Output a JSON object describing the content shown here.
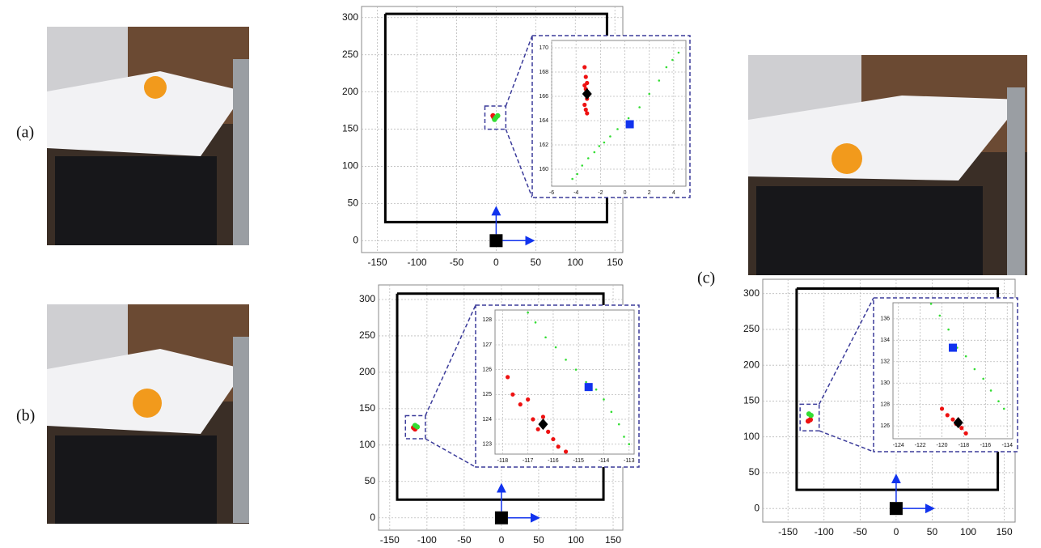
{
  "panel_labels": [
    "(a)",
    "(b)",
    "(c)"
  ],
  "chart_data": [
    {
      "type": "scatter",
      "grid": true,
      "xlim": [
        -170,
        160
      ],
      "ylim": [
        -16,
        315
      ],
      "xticks": [
        -150,
        -100,
        -50,
        0,
        50,
        100,
        150
      ],
      "yticks": [
        0,
        50,
        100,
        150,
        200,
        250,
        300
      ],
      "series": [
        {
          "marker": "line",
          "color": "#000000",
          "x": [
            -140,
            -140,
            140,
            140,
            -140
          ],
          "values": [
            305,
            25,
            25,
            305,
            305
          ]
        },
        {
          "marker": "circle",
          "color": "#ee1111",
          "x": [
            -4,
            -3,
            -2
          ],
          "values": [
            168,
            166,
            164
          ]
        },
        {
          "marker": "circle",
          "color": "#33dd33",
          "x": [
            -2,
            0,
            2
          ],
          "values": [
            163,
            166,
            168
          ]
        },
        {
          "marker": "square",
          "color": "#000000",
          "x": [
            0
          ],
          "values": [
            0
          ]
        }
      ]
    },
    {
      "type": "scatter",
      "grid": true,
      "xlim": [
        -6,
        5
      ],
      "ylim": [
        158.6,
        170.6
      ],
      "xticks": [
        -6,
        -4,
        -2,
        0,
        2,
        4
      ],
      "yticks": [
        160,
        162,
        164,
        166,
        168,
        170
      ],
      "series": [
        {
          "marker": "dot",
          "color": "#33dd33",
          "x": [
            -4.3,
            -3.9,
            -3.5,
            -3.0,
            -2.5,
            -2.1,
            -1.7,
            -1.2,
            -0.6,
            0.3,
            1.2,
            2.0,
            2.8,
            3.4,
            3.9,
            4.4
          ],
          "values": [
            159.2,
            159.6,
            160.3,
            160.9,
            161.4,
            161.9,
            162.2,
            162.7,
            163.3,
            164.2,
            165.1,
            166.2,
            167.3,
            168.4,
            169.0,
            169.6
          ]
        },
        {
          "marker": "circle",
          "color": "#ee1111",
          "x": [
            -3.3,
            -3.2,
            -3.1,
            -3.2,
            -3.1,
            -3.3,
            -3.2,
            -3.1,
            -3.3
          ],
          "values": [
            168.4,
            167.6,
            167.1,
            166.6,
            165.8,
            165.3,
            164.9,
            164.6,
            166.9
          ]
        },
        {
          "marker": "diamond",
          "color": "#000000",
          "x": [
            -3.1
          ],
          "values": [
            166.2
          ]
        },
        {
          "marker": "square",
          "color": "#1133ee",
          "x": [
            0.4
          ],
          "values": [
            163.7
          ]
        }
      ]
    },
    {
      "type": "scatter",
      "grid": true,
      "xlim": [
        -165,
        163
      ],
      "ylim": [
        -17,
        320
      ],
      "xticks": [
        -150,
        -100,
        -50,
        0,
        50,
        100,
        150
      ],
      "yticks": [
        0,
        50,
        100,
        150,
        200,
        250,
        300
      ],
      "series": [
        {
          "marker": "line",
          "color": "#000000",
          "x": [
            -140,
            -140,
            137,
            137,
            -140
          ],
          "values": [
            308,
            25,
            25,
            308,
            308
          ]
        },
        {
          "marker": "circle",
          "color": "#ee1111",
          "x": [
            -118,
            -116
          ],
          "values": [
            124,
            122
          ]
        },
        {
          "marker": "circle",
          "color": "#33dd33",
          "x": [
            -116,
            -113
          ],
          "values": [
            127,
            125
          ]
        },
        {
          "marker": "square",
          "color": "#000000",
          "x": [
            0
          ],
          "values": [
            0
          ]
        }
      ]
    },
    {
      "type": "scatter",
      "grid": true,
      "xlim": [
        -118.3,
        -112.8
      ],
      "ylim": [
        122.6,
        128.4
      ],
      "xticks": [
        -118,
        -117,
        -116,
        -115,
        -114,
        -113
      ],
      "yticks": [
        123,
        124,
        125,
        126,
        127,
        128
      ],
      "series": [
        {
          "marker": "dot",
          "color": "#33dd33",
          "x": [
            -117.0,
            -116.7,
            -116.3,
            -115.9,
            -115.5,
            -115.1,
            -114.7,
            -114.3,
            -114.0,
            -113.7,
            -113.4,
            -113.2,
            -113.0
          ],
          "values": [
            128.3,
            127.9,
            127.3,
            126.9,
            126.4,
            126.0,
            125.5,
            125.2,
            124.8,
            124.3,
            123.8,
            123.3,
            123.0
          ]
        },
        {
          "marker": "circle",
          "color": "#ee1111",
          "x": [
            -117.8,
            -117.6,
            -117.3,
            -117.0,
            -116.8,
            -116.6,
            -116.4,
            -116.2,
            -116.0,
            -115.8,
            -115.5
          ],
          "values": [
            125.7,
            125.0,
            124.6,
            124.8,
            124.0,
            123.6,
            124.1,
            123.5,
            123.2,
            122.9,
            122.7
          ]
        },
        {
          "marker": "diamond",
          "color": "#000000",
          "x": [
            -116.4
          ],
          "values": [
            123.8
          ]
        },
        {
          "marker": "square",
          "color": "#1133ee",
          "x": [
            -114.6
          ],
          "values": [
            125.3
          ]
        }
      ]
    },
    {
      "type": "scatter",
      "grid": true,
      "xlim": [
        -185,
        165
      ],
      "ylim": [
        -19,
        320
      ],
      "xticks": [
        -150,
        -100,
        -50,
        0,
        50,
        100,
        150
      ],
      "yticks": [
        0,
        50,
        100,
        150,
        200,
        250,
        300
      ],
      "series": [
        {
          "marker": "line",
          "color": "#000000",
          "x": [
            -138,
            -138,
            141,
            141,
            -138
          ],
          "values": [
            307,
            26,
            26,
            307,
            307
          ]
        },
        {
          "marker": "circle",
          "color": "#ee1111",
          "x": [
            -122,
            -119
          ],
          "values": [
            122,
            124
          ]
        },
        {
          "marker": "circle",
          "color": "#33dd33",
          "x": [
            -121,
            -118
          ],
          "values": [
            132,
            130
          ]
        },
        {
          "marker": "square",
          "color": "#000000",
          "x": [
            0
          ],
          "values": [
            0
          ]
        }
      ]
    },
    {
      "type": "scatter",
      "grid": true,
      "xlim": [
        -124.5,
        -113.5
      ],
      "ylim": [
        124.8,
        137.5
      ],
      "xticks": [
        -124,
        -122,
        -120,
        -118,
        -116,
        -114
      ],
      "yticks": [
        126,
        128,
        130,
        132,
        134,
        136
      ],
      "series": [
        {
          "marker": "dot",
          "color": "#33dd33",
          "x": [
            -121.0,
            -120.2,
            -119.4,
            -118.6,
            -117.8,
            -117.0,
            -116.2,
            -115.5,
            -114.8,
            -114.3
          ],
          "values": [
            137.4,
            136.3,
            135.0,
            133.3,
            132.5,
            131.3,
            130.4,
            129.3,
            128.3,
            127.6
          ]
        },
        {
          "marker": "circle",
          "color": "#ee1111",
          "x": [
            -120.0,
            -119.5,
            -119.0,
            -118.7,
            -118.2,
            -117.8
          ],
          "values": [
            127.6,
            127.0,
            126.6,
            126.2,
            125.8,
            125.3
          ]
        },
        {
          "marker": "diamond",
          "color": "#000000",
          "x": [
            -118.5
          ],
          "values": [
            126.3
          ]
        },
        {
          "marker": "square",
          "color": "#1133ee",
          "x": [
            -119.0
          ],
          "values": [
            133.3
          ]
        }
      ]
    }
  ]
}
